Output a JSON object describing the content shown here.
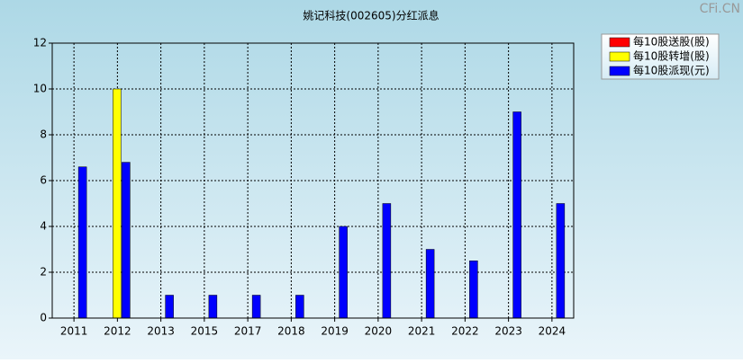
{
  "chart_data": {
    "type": "bar",
    "title": "姚记科技(002605)分红派息",
    "watermark": "CFi.CN",
    "categories": [
      "2011",
      "2012",
      "2013",
      "2015",
      "2017",
      "2018",
      "2019",
      "2020",
      "2021",
      "2022",
      "2023",
      "2024"
    ],
    "series": [
      {
        "name": "每10股送股(股)",
        "color": "#ff0000",
        "values": [
          null,
          null,
          null,
          null,
          null,
          null,
          null,
          null,
          null,
          null,
          null,
          null
        ]
      },
      {
        "name": "每10股转增(股)",
        "color": "#ffff00",
        "values": [
          null,
          10,
          null,
          null,
          null,
          null,
          null,
          null,
          null,
          null,
          null,
          null
        ]
      },
      {
        "name": "每10股派现(元)",
        "color": "#0000ff",
        "values": [
          6.6,
          6.8,
          1,
          1,
          1,
          1,
          4,
          5,
          3,
          2.5,
          9,
          5
        ]
      }
    ],
    "ylim": [
      0,
      12
    ],
    "yticks": [
      0,
      2,
      4,
      6,
      8,
      10,
      12
    ],
    "grid": true,
    "legend": "upper right"
  }
}
